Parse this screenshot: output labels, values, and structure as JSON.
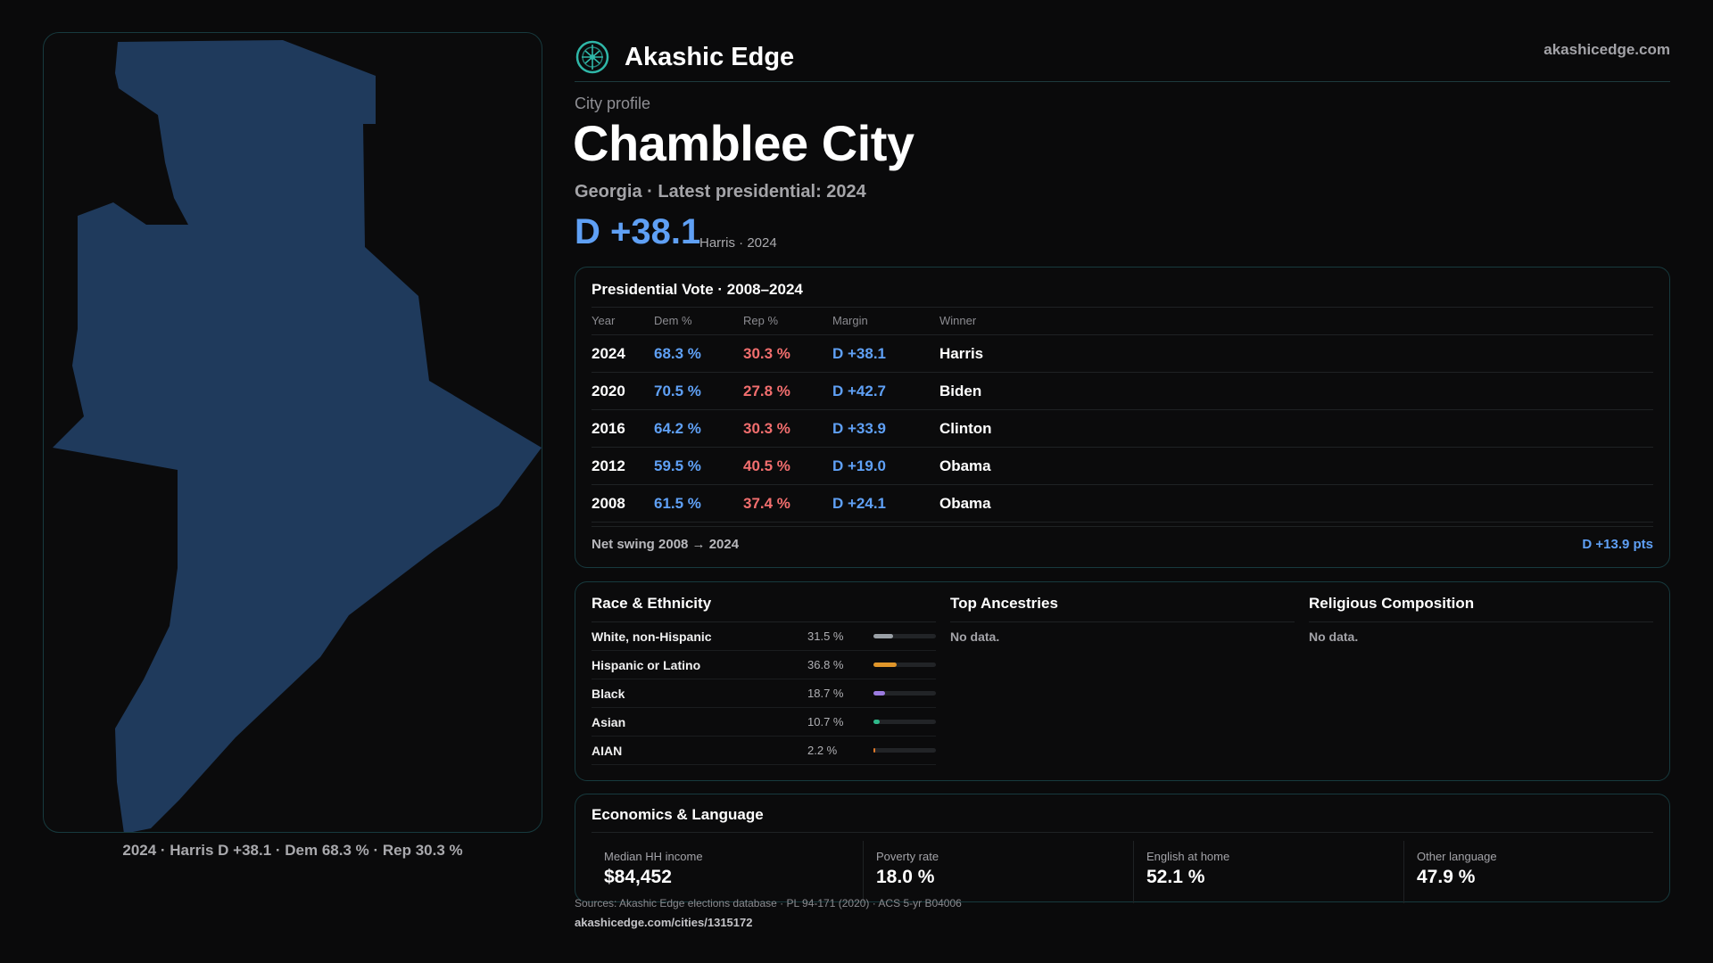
{
  "brand": {
    "name": "Akashic Edge",
    "url": "akashicedge.com",
    "logo_icon": "tree-of-life-icon",
    "accent": "#2fb7a8"
  },
  "header": {
    "eyebrow": "City profile",
    "title": "Chamblee City",
    "subtitle": "Georgia · Latest presidential: 2024",
    "margin": "D +38.1",
    "margin_note": "Harris · 2024"
  },
  "map": {
    "caption": "2024 · Harris D +38.1 · Dem 68.3 % · Rep 30.3 %",
    "fill": "#1f3a5c"
  },
  "vote": {
    "title": "Presidential Vote · 2008–2024",
    "columns": {
      "year": "Year",
      "dem": "Dem %",
      "rep": "Rep %",
      "margin": "Margin",
      "winner": "Winner"
    },
    "rows": [
      {
        "year": "2024",
        "dem": "68.3 %",
        "rep": "30.3 %",
        "margin": "D +38.1",
        "winner": "Harris"
      },
      {
        "year": "2020",
        "dem": "70.5 %",
        "rep": "27.8 %",
        "margin": "D +42.7",
        "winner": "Biden"
      },
      {
        "year": "2016",
        "dem": "64.2 %",
        "rep": "30.3 %",
        "margin": "D +33.9",
        "winner": "Clinton"
      },
      {
        "year": "2012",
        "dem": "59.5 %",
        "rep": "40.5 %",
        "margin": "D +19.0",
        "winner": "Obama"
      },
      {
        "year": "2008",
        "dem": "61.5 %",
        "rep": "37.4 %",
        "margin": "D +24.1",
        "winner": "Obama"
      }
    ],
    "swing_label": "Net swing 2008 → 2024",
    "swing_value": "D +13.9 pts",
    "colors": {
      "dem": "#5fa0f5",
      "rep": "#f26e6e"
    }
  },
  "race": {
    "title": "Race & Ethnicity",
    "rows": [
      {
        "label": "White, non-Hispanic",
        "pct": "31.5 %",
        "value": 31.5,
        "color": "#9aa0a6"
      },
      {
        "label": "Hispanic or Latino",
        "pct": "36.8 %",
        "value": 36.8,
        "color": "#e0962a"
      },
      {
        "label": "Black",
        "pct": "18.7 %",
        "value": 18.7,
        "color": "#9b7be0"
      },
      {
        "label": "Asian",
        "pct": "10.7 %",
        "value": 10.7,
        "color": "#2fb98a"
      },
      {
        "label": "AIAN",
        "pct": "2.2 %",
        "value": 2.2,
        "color": "#e07a2a"
      }
    ]
  },
  "ancestry": {
    "title": "Top Ancestries",
    "empty": "No data."
  },
  "religion": {
    "title": "Religious Composition",
    "empty": "No data."
  },
  "economics": {
    "title": "Economics & Language",
    "stats": [
      {
        "label": "Median HH income",
        "value": "$84,452"
      },
      {
        "label": "Poverty rate",
        "value": "18.0 %"
      },
      {
        "label": "English at home",
        "value": "52.1 %"
      },
      {
        "label": "Other language",
        "value": "47.9 %"
      }
    ]
  },
  "footer": {
    "sources": "Sources: Akashic Edge elections database · PL 94-171 (2020) · ACS 5-yr B04006",
    "url": "akashicedge.com/cities/1315172"
  }
}
